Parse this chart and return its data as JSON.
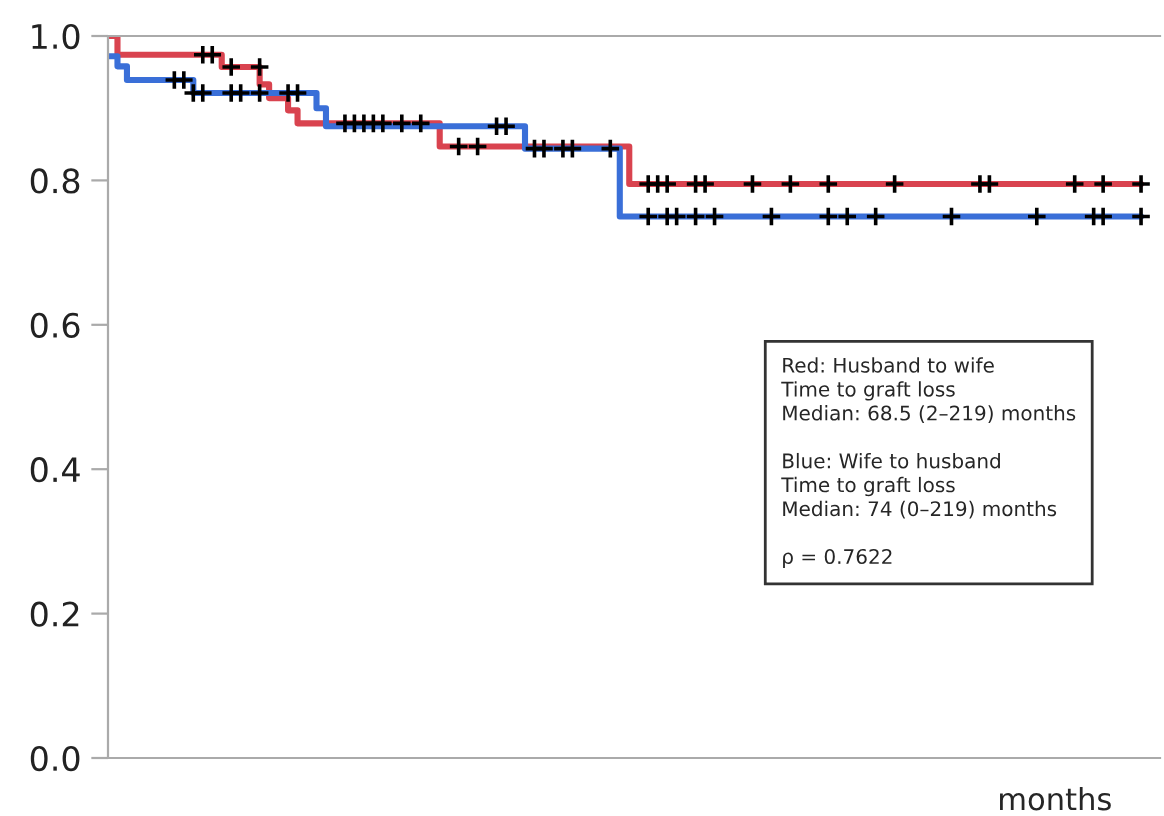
{
  "chart_data": {
    "type": "step",
    "xlabel": "months",
    "categories": [
      null,
      null,
      null,
      null,
      null,
      null,
      null,
      null,
      null,
      null,
      null,
      null,
      null,
      null,
      null,
      null,
      null,
      null,
      null,
      null,
      null,
      null,
      null,
      null,
      null,
      null,
      null,
      null,
      null,
      null,
      null,
      null,
      null,
      null,
      null,
      null,
      null,
      null,
      null,
      null,
      null,
      null,
      null,
      null,
      null,
      null,
      null,
      null,
      null,
      null,
      null,
      null,
      null,
      null,
      null,
      null,
      null,
      null,
      null,
      null,
      null,
      null,
      null,
      null,
      null,
      null,
      null,
      null,
      null,
      null,
      null,
      null,
      null,
      null,
      null,
      null,
      null,
      null,
      null,
      null,
      null,
      null,
      null,
      null,
      null,
      null,
      null,
      null,
      null,
      null,
      null,
      null,
      null,
      null,
      null,
      null,
      null,
      null,
      null,
      null,
      null,
      null,
      null,
      null,
      null,
      null,
      null,
      null,
      null,
      null
    ],
    "ylim": [
      0,
      1
    ],
    "yticks": [
      {
        "value": 0,
        "label": "0.0"
      },
      {
        "value": 0.2,
        "label": "0.2"
      },
      {
        "value": 0.4,
        "label": "0.4"
      },
      {
        "value": 0.6,
        "label": "0.6"
      },
      {
        "value": 0.8,
        "label": "0.8"
      },
      {
        "value": 1,
        "label": "1.0"
      }
    ],
    "tick_labels": "y",
    "series": [
      {
        "color": "#d9434f",
        "values": [
          1.0,
          0.974,
          0.974,
          0.974,
          0.974,
          0.974,
          0.974,
          0.974,
          0.974,
          0.974,
          0.974,
          0.974,
          0.957,
          0.957,
          0.957,
          0.957,
          0.933,
          0.914,
          0.914,
          0.897,
          0.879,
          0.879,
          0.879,
          0.879,
          0.879,
          0.879,
          0.879,
          0.879,
          0.879,
          0.879,
          0.879,
          0.879,
          0.879,
          0.879,
          0.879,
          0.847,
          0.847,
          0.847,
          0.847,
          0.847,
          0.847,
          0.847,
          0.847,
          0.847,
          0.847,
          0.847,
          0.847,
          0.847,
          0.847,
          0.847,
          0.847,
          0.847,
          0.847,
          0.847,
          0.847,
          0.795,
          0.795,
          0.795,
          0.795,
          0.795,
          0.795,
          0.795,
          0.795,
          0.795,
          0.795,
          0.795,
          0.795,
          0.795,
          0.795,
          0.795,
          0.795,
          0.795,
          0.795,
          0.795,
          0.795,
          0.795,
          0.795,
          0.795,
          0.795,
          0.795,
          0.795,
          0.795,
          0.795,
          0.795,
          0.795,
          0.795,
          0.795,
          0.795,
          0.795,
          0.795,
          0.795,
          0.795,
          0.795,
          0.795,
          0.795,
          0.795,
          0.795,
          0.795,
          0.795,
          0.795,
          0.795,
          0.795,
          0.795,
          0.795,
          0.795,
          0.795,
          0.795,
          0.795,
          0.795,
          0.795
        ]
      },
      {
        "color": "#3a6fd8",
        "values": [
          0.972,
          0.958,
          0.939,
          0.939,
          0.939,
          0.939,
          0.939,
          0.939,
          0.939,
          0.921,
          0.921,
          0.921,
          0.921,
          0.921,
          0.921,
          0.921,
          0.921,
          0.921,
          0.921,
          0.921,
          0.921,
          0.921,
          0.9,
          0.875,
          0.875,
          0.875,
          0.875,
          0.875,
          0.875,
          0.875,
          0.875,
          0.875,
          0.875,
          0.875,
          0.875,
          0.875,
          0.875,
          0.875,
          0.875,
          0.875,
          0.875,
          0.875,
          0.875,
          0.875,
          0.844,
          0.844,
          0.844,
          0.844,
          0.844,
          0.844,
          0.844,
          0.844,
          0.844,
          0.844,
          0.75,
          0.75,
          0.75,
          0.75,
          0.75,
          0.75,
          0.75,
          0.75,
          0.75,
          0.75,
          0.75,
          0.75,
          0.75,
          0.75,
          0.75,
          0.75,
          0.75,
          0.75,
          0.75,
          0.75,
          0.75,
          0.75,
          0.75,
          0.75,
          0.75,
          0.75,
          0.75,
          0.75,
          0.75,
          0.75,
          0.75,
          0.75,
          0.75,
          0.75,
          0.75,
          0.75,
          0.75,
          0.75,
          0.75,
          0.75,
          0.75,
          0.75,
          0.75,
          0.75,
          0.75,
          0.75,
          0.75,
          0.75,
          0.75,
          0.75,
          0.75,
          0.75,
          0.75,
          0.75,
          0.75,
          0.75
        ]
      },
      {
        "type": "scatter",
        "marker": "cross",
        "color": "#000000",
        "values": [
          null,
          null,
          null,
          null,
          null,
          null,
          null,
          null,
          null,
          null,
          0.974,
          0.974,
          null,
          0.957,
          null,
          null,
          0.957,
          null,
          null,
          null,
          null,
          null,
          null,
          null,
          null,
          0.879,
          0.879,
          0.879,
          0.879,
          0.879,
          null,
          0.879,
          null,
          0.879,
          null,
          null,
          null,
          0.847,
          null,
          0.847,
          null,
          null,
          null,
          null,
          null,
          null,
          null,
          null,
          null,
          null,
          null,
          null,
          null,
          null,
          null,
          null,
          null,
          0.795,
          0.795,
          0.795,
          null,
          null,
          0.795,
          0.795,
          null,
          null,
          null,
          null,
          0.795,
          null,
          null,
          null,
          0.795,
          null,
          null,
          null,
          0.795,
          null,
          null,
          null,
          null,
          null,
          null,
          0.795,
          null,
          null,
          null,
          null,
          null,
          null,
          null,
          null,
          0.795,
          0.795,
          null,
          null,
          null,
          null,
          null,
          null,
          null,
          null,
          0.795,
          null,
          null,
          0.795,
          null,
          null,
          null,
          0.795
        ]
      },
      {
        "type": "scatter",
        "marker": "cross",
        "color": "#000000",
        "values": [
          null,
          null,
          null,
          null,
          null,
          null,
          null,
          0.939,
          0.939,
          0.921,
          0.921,
          null,
          null,
          0.921,
          0.921,
          null,
          0.921,
          null,
          null,
          0.921,
          0.921,
          null,
          null,
          null,
          null,
          null,
          null,
          null,
          null,
          null,
          null,
          null,
          null,
          null,
          null,
          null,
          null,
          null,
          null,
          null,
          null,
          0.875,
          0.875,
          null,
          null,
          0.844,
          0.844,
          null,
          0.844,
          0.844,
          null,
          null,
          null,
          0.844,
          null,
          null,
          null,
          0.75,
          null,
          0.75,
          0.75,
          null,
          0.75,
          null,
          0.75,
          null,
          null,
          null,
          null,
          null,
          0.75,
          null,
          null,
          null,
          null,
          null,
          0.75,
          null,
          0.75,
          null,
          null,
          0.75,
          null,
          null,
          null,
          null,
          null,
          null,
          null,
          0.75,
          null,
          null,
          null,
          null,
          null,
          null,
          null,
          null,
          0.75,
          null,
          null,
          null,
          null,
          null,
          0.75,
          0.75,
          null,
          null,
          null,
          0.75
        ]
      }
    ],
    "annotations": [
      "Red: Husband to wife\nTime to graft loss\nMedian: 68.5 (2–219) months\n\nBlue: Wife to husband\nTime to graft loss\nMedian: 74 (0–219) months\n\nρ = 0.7622"
    ]
  }
}
